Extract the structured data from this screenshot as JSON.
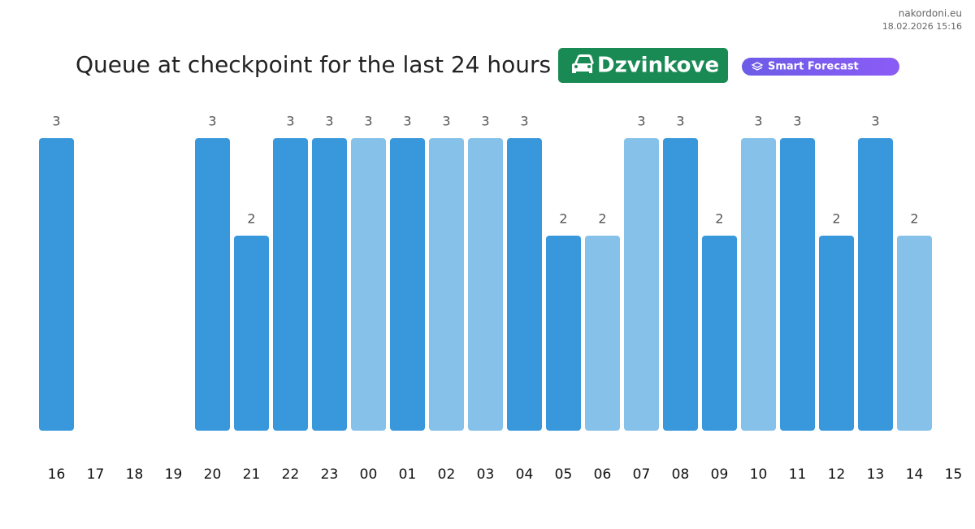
{
  "chart_data": {
    "type": "bar",
    "title": "Queue at checkpoint for the last 24 hours",
    "checkpoint": "Dzvinkove",
    "feature": "Smart Forecast",
    "source": "nakordoni.eu",
    "timestamp": "18.02.2026 15:16",
    "categories": [
      "16",
      "17",
      "18",
      "19",
      "20",
      "21",
      "22",
      "23",
      "00",
      "01",
      "02",
      "03",
      "04",
      "05",
      "06",
      "07",
      "08",
      "09",
      "10",
      "11",
      "12",
      "13",
      "14",
      "15"
    ],
    "values": [
      3,
      null,
      null,
      null,
      3,
      2,
      3,
      3,
      3,
      3,
      3,
      3,
      3,
      2,
      2,
      3,
      3,
      2,
      3,
      3,
      2,
      3,
      2,
      null
    ],
    "colors": [
      "#3898db",
      null,
      null,
      null,
      "#3898db",
      "#3898db",
      "#3898db",
      "#3898db",
      "#85c1e9",
      "#3898db",
      "#85c1e9",
      "#85c1e9",
      "#3898db",
      "#3898db",
      "#85c1e9",
      "#85c1e9",
      "#3898db",
      "#3898db",
      "#85c1e9",
      "#3898db",
      "#3898db",
      "#3898db",
      "#85c1e9",
      null
    ],
    "ylim": [
      0,
      3
    ]
  }
}
